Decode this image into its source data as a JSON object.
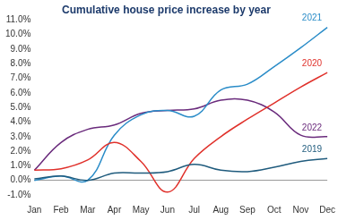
{
  "chart_data": {
    "type": "line",
    "title": "Cumulative house price increase by year",
    "categories": [
      "Jan",
      "Feb",
      "Mar",
      "Apr",
      "May",
      "Jun",
      "Jul",
      "Aug",
      "Sep",
      "Oct",
      "Nov",
      "Dec"
    ],
    "series": [
      {
        "name": "2019",
        "color": "#1f5b7d",
        "values": [
          0.1,
          0.3,
          0.0,
          0.5,
          0.5,
          0.6,
          1.1,
          0.7,
          0.6,
          0.9,
          1.3,
          1.5
        ]
      },
      {
        "name": "2020",
        "color": "#e0312b",
        "values": [
          0.7,
          0.8,
          1.4,
          2.6,
          1.3,
          -0.8,
          1.5,
          3.0,
          4.2,
          5.3,
          6.4,
          7.4
        ]
      },
      {
        "name": "2021",
        "color": "#2a8cc8",
        "values": [
          0.0,
          0.3,
          0.0,
          3.1,
          4.5,
          4.8,
          4.4,
          6.2,
          6.6,
          7.8,
          9.1,
          10.5
        ]
      },
      {
        "name": "2022",
        "color": "#6a2b7c",
        "values": [
          0.7,
          2.6,
          3.5,
          3.8,
          4.6,
          4.8,
          4.9,
          5.5,
          5.5,
          4.7,
          3.1,
          3.0
        ]
      }
    ],
    "ylim": [
      -1,
      11
    ],
    "yticks": [
      {
        "value": -1,
        "label": "-1.0%"
      },
      {
        "value": 0,
        "label": "0.0%"
      },
      {
        "value": 1,
        "label": "1.0%"
      },
      {
        "value": 2,
        "label": "2.0%"
      },
      {
        "value": 3,
        "label": "3.0%"
      },
      {
        "value": 4,
        "label": "4.0%"
      },
      {
        "value": 5,
        "label": "5.0%"
      },
      {
        "value": 6,
        "label": "6.0%"
      },
      {
        "value": 7,
        "label": "7.0%"
      },
      {
        "value": 8,
        "label": "8.0%"
      },
      {
        "value": 9,
        "label": "9.0%"
      },
      {
        "value": 10,
        "label": "10.0%"
      },
      {
        "value": 11,
        "label": "11.0%"
      }
    ],
    "grid": false
  }
}
